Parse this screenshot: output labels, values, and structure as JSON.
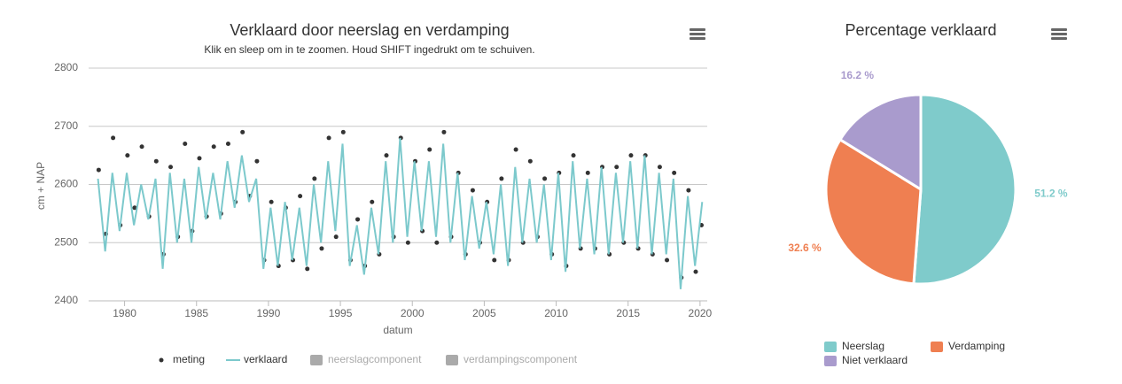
{
  "chart_data": [
    {
      "type": "line",
      "title": "Verklaard door neerslag en verdamping",
      "subtitle": "Klik en sleep om in te zoomen. Houd SHIFT ingedrukt om te schuiven.",
      "y_label": "cm + NAP",
      "x_label": "datum",
      "xlim": [
        1977.5,
        2020.5
      ],
      "xticks": [
        1980,
        1985,
        1990,
        1995,
        2000,
        2005,
        2010,
        2015,
        2020
      ],
      "ylim": [
        2400,
        2800
      ],
      "yticks": [
        2400,
        2500,
        2600,
        2700,
        2800
      ],
      "grid": true,
      "series": [
        {
          "name": "meting",
          "color": "#333333",
          "kind": "scatter",
          "x": [
            1978.2,
            1978.7,
            1979.2,
            1979.7,
            1980.2,
            1980.7,
            1981.2,
            1981.7,
            1982.2,
            1982.7,
            1983.2,
            1983.7,
            1984.2,
            1984.7,
            1985.2,
            1985.7,
            1986.2,
            1986.7,
            1987.2,
            1987.7,
            1988.2,
            1988.7,
            1989.2,
            1989.7,
            1990.2,
            1990.7,
            1991.2,
            1991.7,
            1992.2,
            1992.7,
            1993.2,
            1993.7,
            1994.2,
            1994.7,
            1995.2,
            1995.7,
            1996.2,
            1996.7,
            1997.2,
            1997.7,
            1998.2,
            1998.7,
            1999.2,
            1999.7,
            2000.2,
            2000.7,
            2001.2,
            2001.7,
            2002.2,
            2002.7,
            2003.2,
            2003.7,
            2004.2,
            2004.7,
            2005.2,
            2005.7,
            2006.2,
            2006.7,
            2007.2,
            2007.7,
            2008.2,
            2008.7,
            2009.2,
            2009.7,
            2010.2,
            2010.7,
            2011.2,
            2011.7,
            2012.2,
            2012.7,
            2013.2,
            2013.7,
            2014.2,
            2014.7,
            2015.2,
            2015.7,
            2016.2,
            2016.7,
            2017.2,
            2017.7,
            2018.2,
            2018.7,
            2019.2,
            2019.7,
            2020.1
          ],
          "values": [
            2625,
            2515,
            2680,
            2530,
            2650,
            2560,
            2665,
            2545,
            2640,
            2480,
            2630,
            2510,
            2670,
            2520,
            2645,
            2545,
            2665,
            2550,
            2670,
            2570,
            2690,
            2580,
            2640,
            2470,
            2570,
            2460,
            2560,
            2470,
            2580,
            2455,
            2610,
            2490,
            2680,
            2510,
            2690,
            2470,
            2540,
            2460,
            2570,
            2480,
            2650,
            2510,
            2680,
            2500,
            2640,
            2520,
            2660,
            2500,
            2690,
            2510,
            2620,
            2480,
            2590,
            2500,
            2570,
            2470,
            2610,
            2470,
            2660,
            2500,
            2640,
            2510,
            2610,
            2480,
            2620,
            2460,
            2650,
            2490,
            2620,
            2490,
            2630,
            2480,
            2630,
            2500,
            2650,
            2490,
            2650,
            2480,
            2630,
            2470,
            2620,
            2440,
            2590,
            2450,
            2530
          ]
        },
        {
          "name": "verklaard",
          "color": "#7cc9cc",
          "kind": "line",
          "x": [
            1978.15,
            1978.65,
            1979.15,
            1979.65,
            1980.15,
            1980.65,
            1981.15,
            1981.65,
            1982.15,
            1982.65,
            1983.15,
            1983.65,
            1984.15,
            1984.65,
            1985.15,
            1985.65,
            1986.15,
            1986.65,
            1987.15,
            1987.65,
            1988.15,
            1988.65,
            1989.15,
            1989.65,
            1990.15,
            1990.65,
            1991.15,
            1991.65,
            1992.15,
            1992.65,
            1993.15,
            1993.65,
            1994.15,
            1994.65,
            1995.15,
            1995.65,
            1996.15,
            1996.65,
            1997.15,
            1997.65,
            1998.15,
            1998.65,
            1999.15,
            1999.65,
            2000.15,
            2000.65,
            2001.15,
            2001.65,
            2002.15,
            2002.65,
            2003.15,
            2003.65,
            2004.15,
            2004.65,
            2005.15,
            2005.65,
            2006.15,
            2006.65,
            2007.15,
            2007.65,
            2008.15,
            2008.65,
            2009.15,
            2009.65,
            2010.15,
            2010.65,
            2011.15,
            2011.65,
            2012.15,
            2012.65,
            2013.15,
            2013.65,
            2014.15,
            2014.65,
            2015.15,
            2015.65,
            2016.15,
            2016.65,
            2017.15,
            2017.65,
            2018.15,
            2018.65,
            2019.15,
            2019.65,
            2020.15
          ],
          "values": [
            2610,
            2485,
            2620,
            2520,
            2620,
            2530,
            2600,
            2540,
            2610,
            2455,
            2620,
            2500,
            2610,
            2500,
            2630,
            2540,
            2620,
            2540,
            2640,
            2560,
            2650,
            2570,
            2610,
            2455,
            2560,
            2460,
            2570,
            2470,
            2560,
            2460,
            2600,
            2500,
            2640,
            2520,
            2670,
            2460,
            2530,
            2445,
            2560,
            2480,
            2640,
            2500,
            2680,
            2510,
            2640,
            2520,
            2640,
            2510,
            2670,
            2500,
            2620,
            2470,
            2580,
            2490,
            2570,
            2480,
            2600,
            2460,
            2630,
            2500,
            2610,
            2500,
            2600,
            2470,
            2620,
            2450,
            2640,
            2490,
            2610,
            2480,
            2630,
            2480,
            2620,
            2500,
            2640,
            2490,
            2650,
            2480,
            2620,
            2480,
            2610,
            2420,
            2580,
            2460,
            2570
          ]
        },
        {
          "name": "neerslagcomponent",
          "color": "#aaaaaa",
          "kind": "hidden"
        },
        {
          "name": "verdampingscomponent",
          "color": "#aaaaaa",
          "kind": "hidden"
        }
      ]
    },
    {
      "type": "pie",
      "title": "Percentage verklaard",
      "categories": [
        "Neerslag",
        "Verdamping",
        "Niet verklaard"
      ],
      "values": [
        51.2,
        32.6,
        16.2
      ],
      "value_labels": [
        "51.2 %",
        "32.6 %",
        "16.2 %"
      ],
      "colors": [
        "#7fcbcb",
        "#ef7f51",
        "#a99bcd"
      ]
    }
  ]
}
